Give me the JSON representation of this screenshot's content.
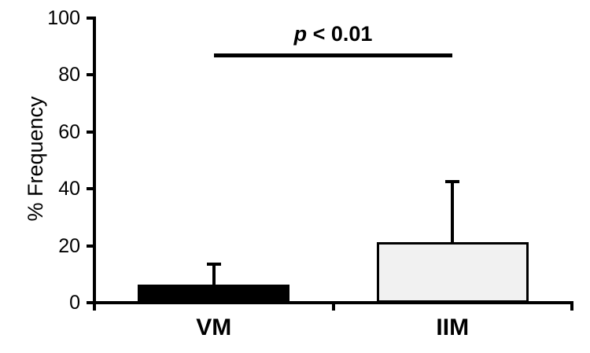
{
  "figure": {
    "background": "#ffffff",
    "axis_color": "#000000"
  },
  "chart_data": {
    "type": "bar",
    "categories": [
      "VM",
      "IIM"
    ],
    "values": [
      6.3,
      21.3
    ],
    "errors_plus": [
      7.8,
      21.8
    ],
    "title": "",
    "xlabel": "",
    "ylabel": "% Frequency",
    "ylim": [
      0,
      100
    ],
    "yticks": [
      0,
      20,
      40,
      60,
      80,
      100
    ],
    "bar_fill_colors": [
      "#000000",
      "#f1f1f1"
    ],
    "bar_border_color": "#000000",
    "grid": false,
    "legend": false,
    "annotation": {
      "text": "p < 0.01",
      "italic_part": "p",
      "rest_part": " < 0.01",
      "spans_categories": [
        "VM",
        "IIM"
      ],
      "line_y_value": 87
    }
  }
}
